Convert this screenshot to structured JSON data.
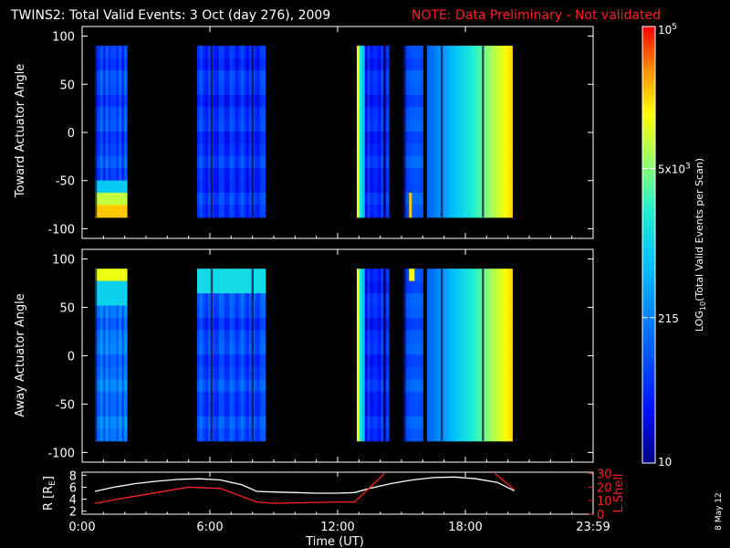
{
  "header": {
    "title": "TWINS2: Total Valid Events:  3 Oct (day 276), 2009",
    "note": "NOTE: Data Preliminary - Not validated",
    "note_color": "#ff2020"
  },
  "colorbar": {
    "label_parts": [
      "LOG",
      "10",
      "(Total Valid Events per Scan)"
    ],
    "ticks": [
      {
        "base": "10",
        "exp": "5",
        "value": 100000
      },
      {
        "base": "5x10",
        "exp": "3",
        "value": 5000
      },
      {
        "base": "215",
        "exp": "",
        "value": 215
      },
      {
        "base": "10",
        "exp": "",
        "value": 10
      }
    ],
    "range": [
      10,
      100000
    ],
    "scale": "log"
  },
  "date_stamp": "8 May 12",
  "chart_data": [
    {
      "type": "heatmap",
      "name": "toward-panel",
      "ylabel": "Toward Actuator Angle",
      "ylim": [
        -110,
        110
      ],
      "yticks": [
        "100",
        "50",
        "0",
        "-50",
        "-100"
      ],
      "xlim": [
        0,
        24
      ],
      "data_ylim": [
        -88,
        90
      ],
      "blocks": [
        {
          "start": 0.6,
          "end": 2.1,
          "profile": "bottom-hot",
          "level": 0.22
        },
        {
          "start": 5.4,
          "end": 8.6,
          "profile": "flat",
          "level": 0.18
        },
        {
          "start": 12.9,
          "end": 14.4,
          "profile": "edge-hot",
          "level": 0.16
        },
        {
          "start": 15.1,
          "end": 16.0,
          "profile": "bottom-hot-faint",
          "level": 0.2
        },
        {
          "start": 16.2,
          "end": 20.2,
          "profile": "ramp",
          "level": 0.22
        }
      ]
    },
    {
      "type": "heatmap",
      "name": "away-panel",
      "ylabel": "Away Actuator Angle",
      "ylim": [
        -110,
        110
      ],
      "yticks": [
        "100",
        "50",
        "0",
        "-50",
        "-100"
      ],
      "xlim": [
        0,
        24
      ],
      "data_ylim": [
        -88,
        90
      ],
      "blocks": [
        {
          "start": 0.6,
          "end": 2.1,
          "profile": "top-hot",
          "level": 0.3
        },
        {
          "start": 5.4,
          "end": 8.6,
          "profile": "top-warm",
          "level": 0.22
        },
        {
          "start": 12.9,
          "end": 14.4,
          "profile": "edge-hot",
          "level": 0.16
        },
        {
          "start": 15.1,
          "end": 16.0,
          "profile": "top-hot-faint",
          "level": 0.2
        },
        {
          "start": 16.2,
          "end": 20.2,
          "profile": "ramp",
          "level": 0.22
        }
      ]
    },
    {
      "type": "line",
      "name": "ephemeris-panel",
      "xlabel": "Time (UT)",
      "xticks": [
        "0:00",
        "6:00",
        "12:00",
        "18:00",
        "23:59"
      ],
      "xlim": [
        0,
        24
      ],
      "left_axis": {
        "label_parts": [
          "R [R",
          "E",
          "]"
        ],
        "ticks": [
          "8",
          "6",
          "4",
          "2"
        ],
        "ylim": [
          1.5,
          8.5
        ]
      },
      "right_axis": {
        "label": "L Shell",
        "ticks": [
          "30",
          "20",
          "10",
          "0"
        ],
        "ylim": [
          0,
          31
        ],
        "color": "#ff2020"
      },
      "series": [
        {
          "axis": "left",
          "color": "#ffffff",
          "x": [
            0.6,
            1.5,
            2.5,
            3.5,
            4.5,
            5.5,
            6.5,
            7.5,
            8.2,
            9,
            10,
            11,
            12,
            12.8,
            13.5,
            14.5,
            15.5,
            16.5,
            17.5,
            18.5,
            19.5,
            20.3
          ],
          "y": [
            5.3,
            6.0,
            6.6,
            7.0,
            7.3,
            7.4,
            7.2,
            6.4,
            5.3,
            5.2,
            5.1,
            5.0,
            5.0,
            5.1,
            5.8,
            6.6,
            7.2,
            7.6,
            7.7,
            7.4,
            6.8,
            5.4
          ]
        },
        {
          "axis": "right",
          "color": "#ff2020",
          "x": [
            0.6,
            2,
            3.5,
            5,
            6.5,
            8.2,
            9,
            10.5,
            12,
            12.8,
            14.2
          ],
          "y": [
            8.0,
            12.0,
            16.0,
            20.0,
            19.0,
            9.0,
            8.0,
            8.5,
            9.0,
            9.0,
            30.0
          ]
        },
        {
          "axis": "right",
          "color": "#ff2020",
          "x": [
            19.4,
            20.3
          ],
          "y": [
            30.0,
            18.0
          ]
        }
      ]
    }
  ]
}
